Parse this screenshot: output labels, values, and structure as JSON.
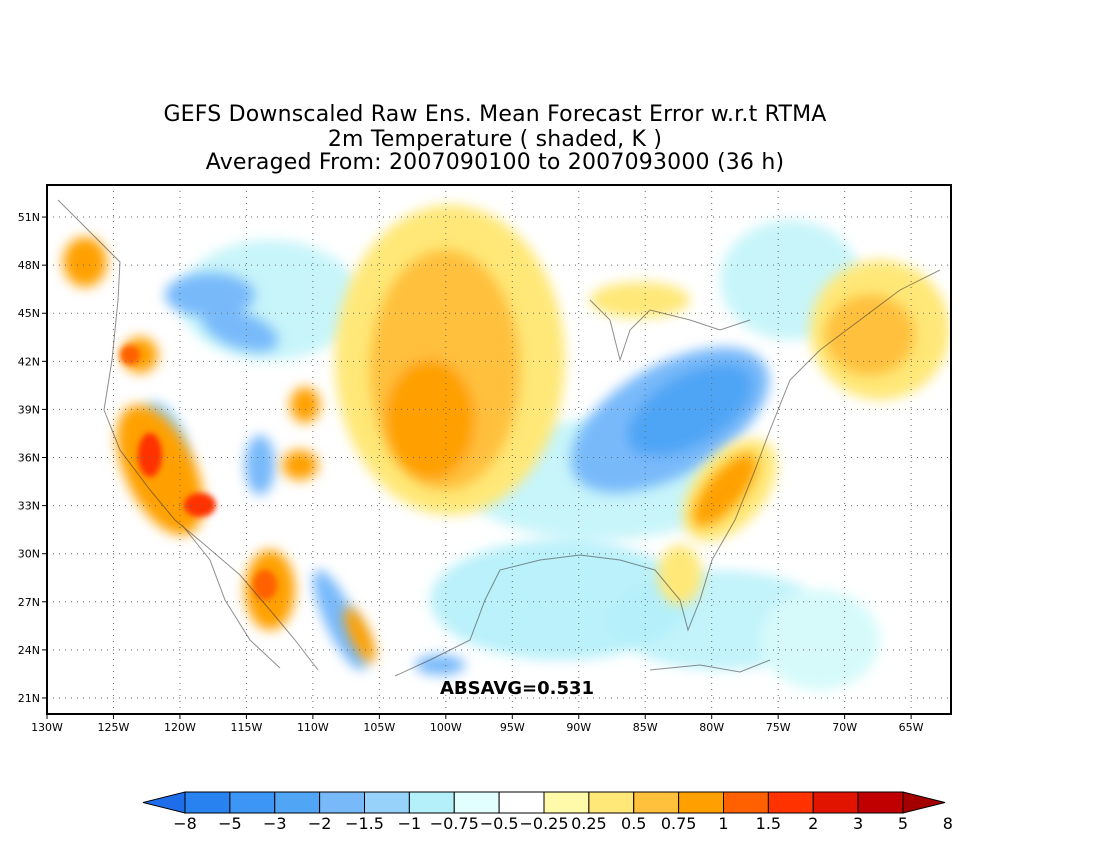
{
  "title": {
    "line1": "GEFS Downscaled Raw Ens. Mean Forecast Error w.r.t RTMA",
    "line2": "2m Temperature ( shaded, K )",
    "line3": "Averaged From: 2007090100 to 2007093000 (36 h)"
  },
  "map": {
    "lon_range": [
      -130,
      -62
    ],
    "lat_range": [
      20,
      53
    ],
    "lon_ticks": [
      "130W",
      "125W",
      "120W",
      "115W",
      "110W",
      "105W",
      "100W",
      "95W",
      "90W",
      "85W",
      "80W",
      "75W",
      "70W",
      "65W"
    ],
    "lat_ticks": [
      "51N",
      "48N",
      "45N",
      "42N",
      "39N",
      "36N",
      "33N",
      "30N",
      "27N",
      "24N",
      "21N"
    ],
    "grid": true
  },
  "annotation": "ABSAVG=0.531",
  "colorbar": {
    "labels": [
      "−8",
      "−5",
      "−3",
      "−2",
      "−1.5",
      "−1",
      "−0.75",
      "−0.5",
      "−0.25",
      "0.25",
      "0.5",
      "0.75",
      "1",
      "1.5",
      "2",
      "3",
      "5",
      "8"
    ],
    "colors": [
      "#1e6eeb",
      "#2882f0",
      "#3c96f5",
      "#50a5f5",
      "#78b9fa",
      "#96d2fa",
      "#b4f0fa",
      "#e1ffff",
      "#ffffff",
      "#fffaaa",
      "#ffe878",
      "#ffc03c",
      "#ffa000",
      "#ff6000",
      "#ff3200",
      "#e11400",
      "#c00000",
      "#a50000"
    ]
  }
}
